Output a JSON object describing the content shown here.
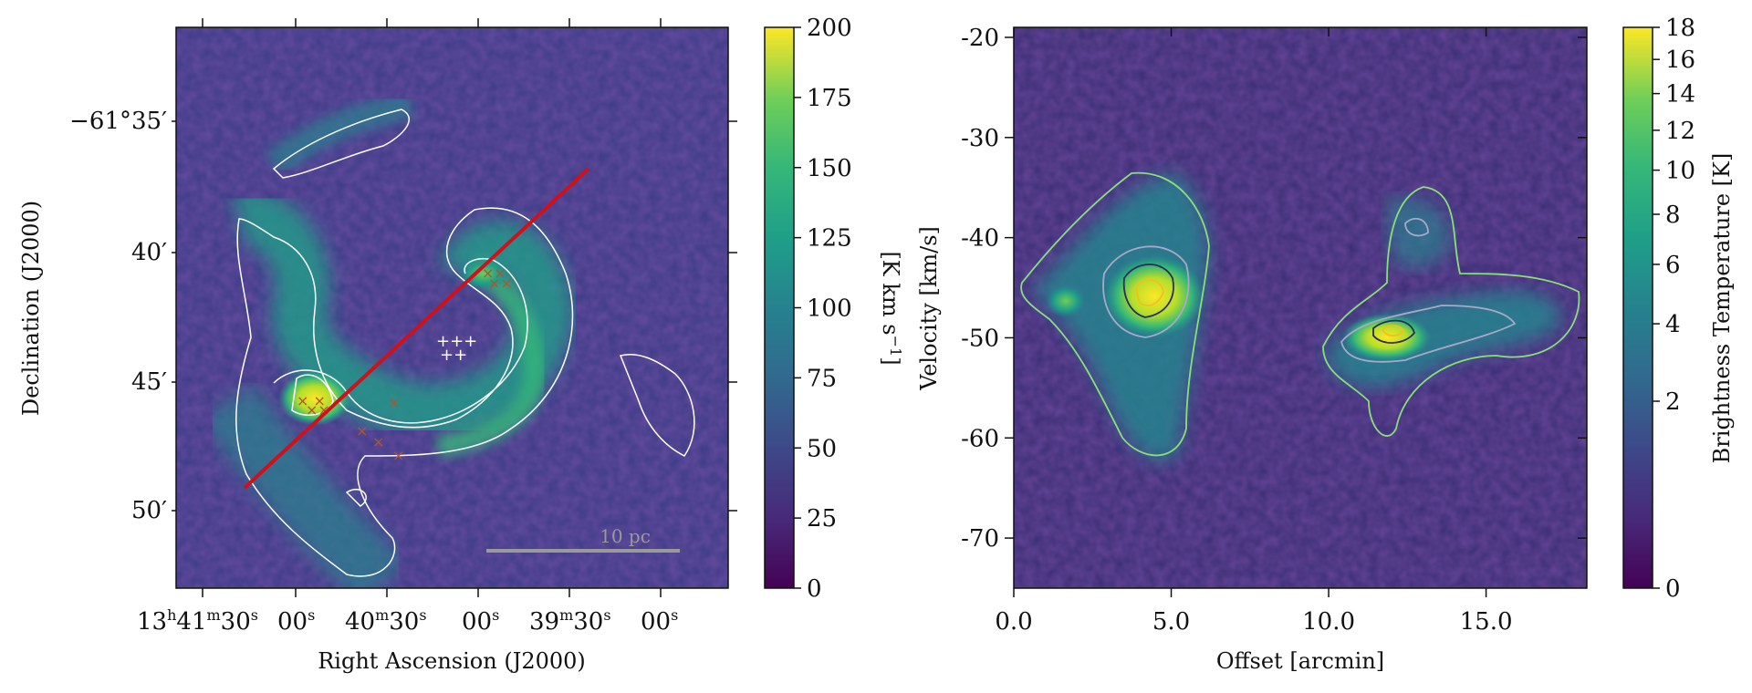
{
  "chart_data": [
    {
      "type": "heatmap",
      "panel": "integrated-intensity-map",
      "xlabel": "Right Ascension (J2000)",
      "ylabel": "Declination (J2000)",
      "x_ticks": [
        {
          "main": "13",
          "sup1": "h",
          "mid": "41",
          "sup2": "m",
          "mid2": "30",
          "sup3": "s"
        },
        {
          "main": "00",
          "sup1": "s"
        },
        {
          "main": "40",
          "sup1": "m",
          "mid": "30",
          "sup2": "s"
        },
        {
          "main": "00",
          "sup1": "s"
        },
        {
          "main": "39",
          "sup1": "m",
          "mid": "30",
          "sup2": "s"
        },
        {
          "main": "00",
          "sup1": "s"
        }
      ],
      "y_ticks": [
        "−61°35′",
        "40′",
        "45′",
        "50′"
      ],
      "colorbar": {
        "label": "[K km s",
        "label_sup": "−1",
        "label_end": "]",
        "ticks": [
          "0",
          "25",
          "50",
          "75",
          "100",
          "125",
          "150",
          "175",
          "200"
        ],
        "range": [
          0,
          200
        ],
        "colormap": "viridis"
      },
      "scale_bar_label": "10 pc",
      "cut_line_color": "#d0101a",
      "marker_color": "#b0552a",
      "contour_color": "#ffffff"
    },
    {
      "type": "heatmap",
      "panel": "position-velocity-diagram",
      "xlabel": "Offset [arcmin]",
      "ylabel": "Velocity [km/s]",
      "xlim": [
        0,
        18.2
      ],
      "ylim": [
        -75,
        -19
      ],
      "x_ticks": [
        "0.0",
        "5.0",
        "10.0",
        "15.0"
      ],
      "y_ticks": [
        "-20",
        "-30",
        "-40",
        "-50",
        "-60",
        "-70"
      ],
      "colorbar": {
        "label": "Brightness Temperature [K]",
        "ticks": [
          "0",
          "2",
          "4",
          "6",
          "8",
          "10",
          "12",
          "14",
          "16",
          "18"
        ],
        "range": [
          0,
          18
        ],
        "colormap": "viridis"
      },
      "contour_colors": [
        "#88e07a",
        "#a8a8c8",
        "#2a2a5a",
        "#f0c020"
      ]
    }
  ]
}
